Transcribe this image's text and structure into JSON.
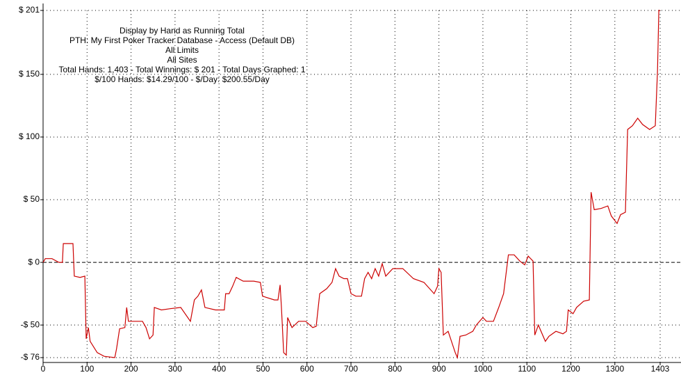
{
  "chart_data": {
    "type": "line",
    "title": "Display by Hand as Running Total",
    "subtitle": [
      "PTH: My First Poker Tracker Database - Access (Default DB)",
      "All Limits",
      "All Sites",
      "Total Hands: 1,403 - Total Winnings: $ 201 - Total Days Graphed: 1",
      "$/100 Hands: $14.29/100 - $/Day: $200.55/Day"
    ],
    "color": "#cc0000",
    "grid": true,
    "xlim": [
      0,
      1403
    ],
    "ylim": [
      -76,
      201
    ],
    "xticks": [
      0,
      100,
      200,
      300,
      400,
      500,
      600,
      700,
      800,
      900,
      1000,
      1100,
      1200,
      1300,
      1403
    ],
    "yticks": [
      {
        "value": -76,
        "label": "-$ 76"
      },
      {
        "value": -50,
        "label": "-$ 50"
      },
      {
        "value": 0,
        "label": "$ 0"
      },
      {
        "value": 50,
        "label": "$ 50"
      },
      {
        "value": 100,
        "label": "$ 100"
      },
      {
        "value": 150,
        "label": "$ 150"
      },
      {
        "value": 201,
        "label": "$ 201"
      }
    ],
    "x": [
      0,
      5,
      20,
      36,
      44,
      46,
      68,
      71,
      84,
      95,
      98,
      103,
      107,
      123,
      139,
      163,
      167,
      174,
      186,
      190,
      194,
      226,
      234,
      242,
      250,
      253,
      269,
      289,
      313,
      335,
      344,
      352,
      360,
      368,
      392,
      412,
      415,
      423,
      431,
      439,
      455,
      479,
      494,
      499,
      526,
      534,
      539,
      542,
      547,
      553,
      556,
      566,
      581,
      597,
      613,
      621,
      629,
      645,
      657,
      665,
      673,
      684,
      692,
      700,
      711,
      724,
      731,
      739,
      747,
      755,
      763,
      771,
      779,
      795,
      818,
      842,
      866,
      889,
      897,
      900,
      905,
      910,
      921,
      937,
      942,
      948,
      961,
      977,
      985,
      1000,
      1008,
      1024,
      1036,
      1047,
      1058,
      1071,
      1084,
      1095,
      1103,
      1114,
      1118,
      1126,
      1142,
      1150,
      1166,
      1182,
      1190,
      1194,
      1205,
      1213,
      1229,
      1242,
      1246,
      1253,
      1269,
      1284,
      1292,
      1305,
      1313,
      1324,
      1329,
      1340,
      1352,
      1363,
      1379,
      1392,
      1397,
      1400,
      1403
    ],
    "values": [
      0,
      3,
      3,
      0,
      0,
      15,
      15,
      -11,
      -12,
      -11,
      -61,
      -52,
      -63,
      -72,
      -75,
      -76,
      -69,
      -53,
      -52,
      -36,
      -47,
      -47,
      -52,
      -61,
      -58,
      -36,
      -38,
      -37,
      -36,
      -47,
      -30,
      -27,
      -22,
      -36,
      -38,
      -38,
      -25,
      -25,
      -19,
      -12,
      -15,
      -15,
      -16,
      -27,
      -30,
      -30,
      -18,
      -36,
      -72,
      -74,
      -44,
      -52,
      -47,
      -47,
      -52,
      -51,
      -25,
      -21,
      -16,
      -5,
      -11,
      -13,
      -13,
      -25,
      -27,
      -27,
      -13,
      -8,
      -13,
      -5,
      -11,
      -1,
      -11,
      -5,
      -5,
      -13,
      -16,
      -25,
      -19,
      -5,
      -8,
      -58,
      -55,
      -72,
      -76,
      -59,
      -58,
      -55,
      -50,
      -44,
      -47,
      -47,
      -36,
      -25,
      6,
      6,
      1,
      -2,
      5,
      1,
      -58,
      -50,
      -63,
      -59,
      -55,
      -57,
      -55,
      -38,
      -41,
      -36,
      -31,
      -30,
      56,
      42,
      43,
      45,
      37,
      31,
      38,
      40,
      106,
      109,
      115,
      110,
      106,
      109,
      153,
      201,
      201
    ]
  }
}
